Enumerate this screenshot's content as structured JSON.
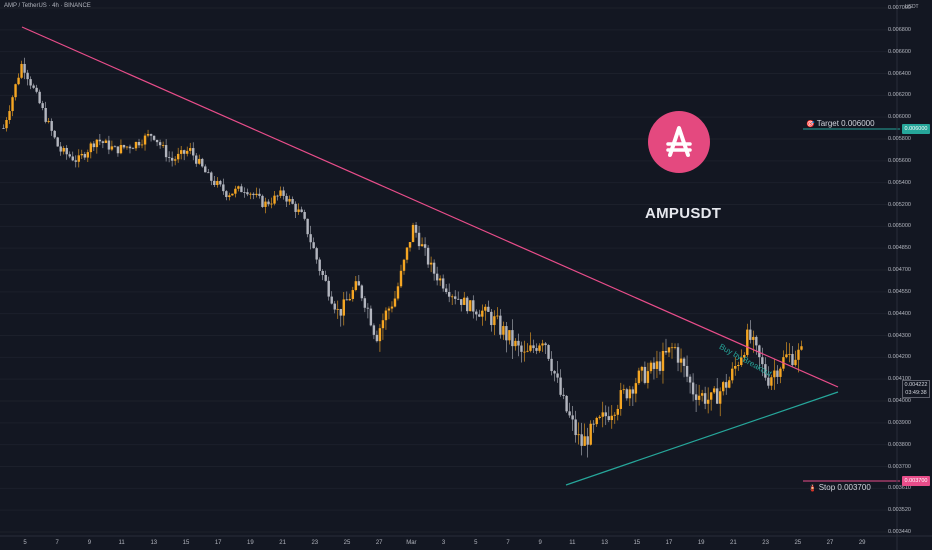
{
  "header": {
    "symbol_info": "AMP / TetherUS · 4h · BINANCE",
    "unit": "USDT"
  },
  "overlay": {
    "ticker_title": "AMPUSDT",
    "breakout_label": "Buy by Breakout",
    "target_label": "Target 0.006000",
    "target_emoji": "🎯",
    "stop_label": "Stop 0.003700",
    "stop_emoji": "🧯"
  },
  "price_axis": {
    "labels": [
      "0.007000",
      "0.006800",
      "0.006600",
      "0.006400",
      "0.006200",
      "0.006000",
      "0.005800",
      "0.005600",
      "0.005400",
      "0.005200",
      "0.005000",
      "0.004850",
      "0.004700",
      "0.004550",
      "0.004400",
      "0.004300",
      "0.004200",
      "0.004100",
      "0.004000",
      "0.003900",
      "0.003800",
      "0.003700",
      "0.003610",
      "0.003520",
      "0.003440"
    ],
    "target_value": "0.006000",
    "stop_value": "0.003700",
    "last_price": "0.004222",
    "countdown": "03:49:38"
  },
  "time_axis": {
    "labels": [
      "5",
      "7",
      "9",
      "11",
      "13",
      "15",
      "17",
      "19",
      "21",
      "23",
      "25",
      "27",
      "Mar",
      "3",
      "5",
      "7",
      "9",
      "11",
      "13",
      "15",
      "17",
      "19",
      "21",
      "23",
      "25",
      "27",
      "29"
    ]
  },
  "colors": {
    "background": "#131722",
    "bull": "#f5a623",
    "bear": "#b2b5be",
    "resistance": "#e84d8a",
    "support": "#26a69a",
    "target_line": "#26a69a",
    "stop_line": "#e84d8a"
  },
  "icons": {
    "logo": "amp-logo-icon"
  },
  "chart_data": {
    "type": "candlestick",
    "title": "AMP / TetherUS · 4h · BINANCE",
    "ylabel": "USDT",
    "ylim": [
      0.00344,
      0.007
    ],
    "x_ticks": [
      "5",
      "7",
      "9",
      "11",
      "13",
      "15",
      "17",
      "19",
      "21",
      "23",
      "25",
      "27",
      "Mar",
      "3",
      "5",
      "7",
      "9",
      "11",
      "13",
      "15",
      "17",
      "19",
      "21",
      "23",
      "25",
      "27",
      "29"
    ],
    "close_path": [
      [
        0,
        0.0059
      ],
      [
        6,
        0.0065
      ],
      [
        12,
        0.0061
      ],
      [
        18,
        0.0057
      ],
      [
        24,
        0.0056
      ],
      [
        30,
        0.0058
      ],
      [
        36,
        0.0057
      ],
      [
        42,
        0.00575
      ],
      [
        48,
        0.00585
      ],
      [
        54,
        0.0056
      ],
      [
        60,
        0.0057
      ],
      [
        66,
        0.00545
      ],
      [
        72,
        0.0053
      ],
      [
        78,
        0.00535
      ],
      [
        84,
        0.0052
      ],
      [
        90,
        0.0053
      ],
      [
        96,
        0.0051
      ],
      [
        102,
        0.0047
      ],
      [
        108,
        0.0044
      ],
      [
        114,
        0.0046
      ],
      [
        120,
        0.0043
      ],
      [
        126,
        0.0045
      ],
      [
        132,
        0.005
      ],
      [
        138,
        0.0047
      ],
      [
        144,
        0.00455
      ],
      [
        150,
        0.00445
      ],
      [
        156,
        0.0044
      ],
      [
        162,
        0.0043
      ],
      [
        168,
        0.0042
      ],
      [
        174,
        0.0043
      ],
      [
        180,
        0.004
      ],
      [
        186,
        0.0038
      ],
      [
        192,
        0.0039
      ],
      [
        198,
        0.004
      ],
      [
        204,
        0.0041
      ],
      [
        210,
        0.00415
      ],
      [
        216,
        0.00425
      ],
      [
        222,
        0.00405
      ],
      [
        228,
        0.004
      ],
      [
        234,
        0.0041
      ],
      [
        240,
        0.0043
      ],
      [
        246,
        0.0041
      ],
      [
        252,
        0.0042
      ],
      [
        258,
        0.00422
      ]
    ],
    "trendlines": [
      {
        "name": "resistance",
        "from": [
          0.0,
          0.00687
        ],
        "to": [
          1.0,
          0.00418
        ]
      },
      {
        "name": "support",
        "from": [
          0.0,
          0.0037
        ],
        "to": [
          1.0,
          0.00416
        ]
      }
    ],
    "levels": {
      "target": 0.006,
      "stop": 0.0037,
      "last": 0.004222
    }
  }
}
